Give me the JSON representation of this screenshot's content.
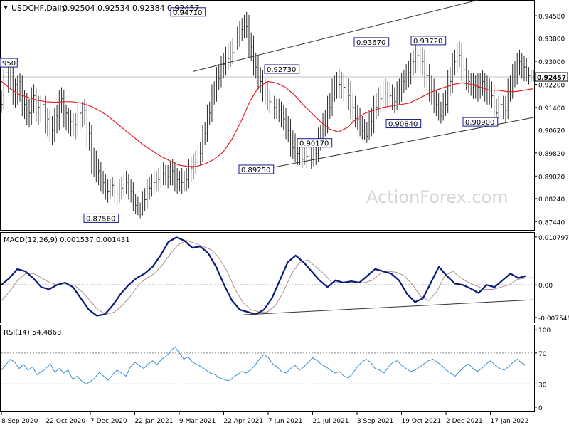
{
  "header": {
    "symbol": "USDCHF,Daily",
    "ohlc": "0.92504 0.92534 0.92384 0.92457"
  },
  "watermark": "ActionForex.com",
  "colors": {
    "price": "#2b2b2b",
    "ema": "#e8202a",
    "macd": "#0b1a7a",
    "signal": "#b09090",
    "rsi": "#3a8fd8",
    "box_border": "#1a1a8c",
    "grid": "#c8c8c8",
    "watermark": "#d4d4d4"
  },
  "chart_data": [
    {
      "panel": "price",
      "type": "line",
      "y_range": [
        0.872,
        0.9505
      ],
      "y_ticks": [
        "0.94580",
        "0.93800",
        "0.93000",
        "0.92200",
        "0.91400",
        "0.90620",
        "0.89820",
        "0.89020",
        "0.88240",
        "0.87440"
      ],
      "y_tick_values": [
        0.9458,
        0.938,
        0.93,
        0.922,
        0.914,
        0.9062,
        0.8982,
        0.8902,
        0.8824,
        0.8744
      ],
      "x_labels": [
        "8 Sep 2020",
        "22 Oct 2020",
        "7 Dec 2020",
        "22 Jan 2021",
        "9 Mar 2021",
        "22 Apr 2021",
        "7 Jun 2021",
        "21 Jul 2021",
        "3 Sep 2021",
        "19 Oct 2021",
        "2 Dec 2021",
        "17 Jan 2022"
      ],
      "last_price": {
        "value": 0.92457,
        "label": "0.92457"
      },
      "price_series": [
        [
          0.915,
          0.92,
          0.912
        ],
        [
          0.926,
          0.928,
          0.918
        ],
        [
          0.929,
          0.93,
          0.92
        ],
        [
          0.922,
          0.924,
          0.914
        ],
        [
          0.923,
          0.926,
          0.916
        ],
        [
          0.915,
          0.92,
          0.91
        ],
        [
          0.912,
          0.917,
          0.907
        ],
        [
          0.918,
          0.922,
          0.912
        ],
        [
          0.914,
          0.918,
          0.908
        ],
        [
          0.915,
          0.919,
          0.909
        ],
        [
          0.91,
          0.914,
          0.904
        ],
        [
          0.906,
          0.911,
          0.901
        ],
        [
          0.911,
          0.915,
          0.905
        ],
        [
          0.917,
          0.921,
          0.912
        ],
        [
          0.912,
          0.915,
          0.906
        ],
        [
          0.909,
          0.913,
          0.904
        ],
        [
          0.908,
          0.912,
          0.903
        ],
        [
          0.912,
          0.916,
          0.906
        ],
        [
          0.913,
          0.917,
          0.908
        ],
        [
          0.905,
          0.909,
          0.899
        ],
        [
          0.895,
          0.9,
          0.89
        ],
        [
          0.892,
          0.896,
          0.887
        ],
        [
          0.888,
          0.892,
          0.884
        ],
        [
          0.885,
          0.889,
          0.881
        ],
        [
          0.887,
          0.89,
          0.883
        ],
        [
          0.884,
          0.888,
          0.88
        ],
        [
          0.886,
          0.89,
          0.882
        ],
        [
          0.888,
          0.892,
          0.884
        ],
        [
          0.885,
          0.889,
          0.881
        ],
        [
          0.88,
          0.884,
          0.877
        ],
        [
          0.877,
          0.881,
          0.8756
        ],
        [
          0.882,
          0.886,
          0.878
        ],
        [
          0.886,
          0.89,
          0.882
        ],
        [
          0.888,
          0.892,
          0.884
        ],
        [
          0.889,
          0.893,
          0.885
        ],
        [
          0.891,
          0.895,
          0.887
        ],
        [
          0.89,
          0.894,
          0.886
        ],
        [
          0.892,
          0.896,
          0.887
        ],
        [
          0.889,
          0.893,
          0.884
        ],
        [
          0.888,
          0.893,
          0.884
        ],
        [
          0.889,
          0.893,
          0.885
        ],
        [
          0.893,
          0.897,
          0.888
        ],
        [
          0.895,
          0.899,
          0.891
        ],
        [
          0.898,
          0.902,
          0.894
        ],
        [
          0.905,
          0.909,
          0.901
        ],
        [
          0.912,
          0.916,
          0.908
        ],
        [
          0.919,
          0.923,
          0.915
        ],
        [
          0.924,
          0.929,
          0.92
        ],
        [
          0.929,
          0.933,
          0.924
        ],
        [
          0.931,
          0.936,
          0.927
        ],
        [
          0.933,
          0.938,
          0.929
        ],
        [
          0.938,
          0.942,
          0.934
        ],
        [
          0.941,
          0.945,
          0.937
        ],
        [
          0.942,
          0.9471,
          0.938
        ],
        [
          0.935,
          0.94,
          0.93
        ],
        [
          0.928,
          0.933,
          0.924
        ],
        [
          0.923,
          0.928,
          0.919
        ],
        [
          0.92,
          0.924,
          0.915
        ],
        [
          0.916,
          0.92,
          0.912
        ],
        [
          0.914,
          0.918,
          0.91
        ],
        [
          0.913,
          0.917,
          0.909
        ],
        [
          0.91,
          0.915,
          0.906
        ],
        [
          0.906,
          0.911,
          0.902
        ],
        [
          0.9,
          0.906,
          0.896
        ],
        [
          0.898,
          0.902,
          0.894
        ],
        [
          0.896,
          0.9,
          0.893
        ],
        [
          0.897,
          0.901,
          0.893
        ],
        [
          0.895,
          0.9,
          0.8925
        ],
        [
          0.898,
          0.903,
          0.894
        ],
        [
          0.903,
          0.908,
          0.899
        ],
        [
          0.908,
          0.913,
          0.904
        ],
        [
          0.914,
          0.919,
          0.91
        ],
        [
          0.92,
          0.925,
          0.916
        ],
        [
          0.922,
          0.9273,
          0.917
        ],
        [
          0.921,
          0.926,
          0.916
        ],
        [
          0.918,
          0.924,
          0.913
        ],
        [
          0.914,
          0.919,
          0.909
        ],
        [
          0.91,
          0.915,
          0.906
        ],
        [
          0.906,
          0.911,
          0.903
        ],
        [
          0.904,
          0.909,
          0.9017
        ],
        [
          0.909,
          0.914,
          0.904
        ],
        [
          0.914,
          0.919,
          0.91
        ],
        [
          0.917,
          0.922,
          0.912
        ],
        [
          0.919,
          0.924,
          0.914
        ],
        [
          0.918,
          0.923,
          0.913
        ],
        [
          0.916,
          0.921,
          0.912
        ],
        [
          0.919,
          0.924,
          0.915
        ],
        [
          0.923,
          0.927,
          0.919
        ],
        [
          0.926,
          0.93,
          0.921
        ],
        [
          0.93,
          0.934,
          0.925
        ],
        [
          0.932,
          0.9367,
          0.927
        ],
        [
          0.93,
          0.935,
          0.925
        ],
        [
          0.925,
          0.93,
          0.92
        ],
        [
          0.92,
          0.925,
          0.915
        ],
        [
          0.915,
          0.92,
          0.911
        ],
        [
          0.911,
          0.916,
          0.9084
        ],
        [
          0.915,
          0.92,
          0.911
        ],
        [
          0.923,
          0.928,
          0.918
        ],
        [
          0.93,
          0.934,
          0.925
        ],
        [
          0.932,
          0.9372,
          0.928
        ],
        [
          0.927,
          0.932,
          0.922
        ],
        [
          0.923,
          0.927,
          0.919
        ],
        [
          0.922,
          0.926,
          0.917
        ],
        [
          0.921,
          0.926,
          0.916
        ],
        [
          0.923,
          0.927,
          0.918
        ],
        [
          0.92,
          0.925,
          0.915
        ],
        [
          0.918,
          0.923,
          0.914
        ],
        [
          0.912,
          0.917,
          0.909
        ],
        [
          0.915,
          0.919,
          0.91
        ],
        [
          0.913,
          0.918,
          0.909
        ],
        [
          0.92,
          0.925,
          0.916
        ],
        [
          0.926,
          0.93,
          0.921
        ],
        [
          0.93,
          0.934,
          0.925
        ],
        [
          0.928,
          0.932,
          0.923
        ],
        [
          0.925,
          0.928,
          0.922
        ],
        [
          0.9246,
          0.927,
          0.923
        ]
      ],
      "ema_series": [
        0.923,
        0.9205,
        0.9185,
        0.9175,
        0.9165,
        0.916,
        0.9158,
        0.916,
        0.916,
        0.9155,
        0.9145,
        0.913,
        0.911,
        0.9085,
        0.906,
        0.9035,
        0.901,
        0.899,
        0.897,
        0.8955,
        0.894,
        0.8935,
        0.8935,
        0.8945,
        0.896,
        0.8985,
        0.903,
        0.909,
        0.916,
        0.921,
        0.923,
        0.9225,
        0.921,
        0.9185,
        0.915,
        0.912,
        0.909,
        0.9065,
        0.9055,
        0.907,
        0.91,
        0.912,
        0.913,
        0.914,
        0.9145,
        0.915,
        0.9155,
        0.917,
        0.9185,
        0.92,
        0.921,
        0.922,
        0.9225,
        0.922,
        0.921,
        0.92,
        0.92,
        0.9195,
        0.9195,
        0.92,
        0.9205
      ],
      "channel_upper": [
        [
          0.361,
          0.9265
        ],
        [
          0.912,
          0.952
        ]
      ],
      "channel_lower": [
        [
          0.491,
          0.8925
        ],
        [
          1.0,
          0.9105
        ]
      ],
      "annotations": [
        {
          "label": "0.94710",
          "value": 0.9471
        },
        {
          "label": "0.87560",
          "value": 0.8756
        },
        {
          "label": "0.89250",
          "value": 0.8925
        },
        {
          "label": "0.92730",
          "value": 0.9273
        },
        {
          "label": "0.90170",
          "value": 0.9017
        },
        {
          "label": "0.93670",
          "value": 0.9367
        },
        {
          "label": "0.90840",
          "value": 0.9084
        },
        {
          "label": "0.93720",
          "value": 0.9372
        },
        {
          "label": "0.90900",
          "value": 0.909
        },
        {
          "label": "950",
          "value": 0.9295
        }
      ]
    },
    {
      "panel": "macd",
      "type": "line",
      "title": "MACD(12,26,9) 0.001537 0.001431",
      "y_range": [
        -0.008,
        0.0112
      ],
      "y_ticks": [
        "0.010797",
        "0.00",
        "-0.007548"
      ],
      "y_tick_values": [
        0.0106,
        0.0,
        -0.0072
      ],
      "zero_line": 0,
      "macd_series": [
        0.0,
        0.0015,
        0.0035,
        0.003,
        0.0015,
        -0.0005,
        -0.001,
        0.0,
        0.0005,
        -0.0005,
        -0.003,
        -0.0055,
        -0.0068,
        -0.0065,
        -0.0045,
        -0.002,
        0.0,
        0.0015,
        0.0025,
        0.004,
        0.0065,
        0.0095,
        0.0105,
        0.0098,
        0.0082,
        0.0085,
        0.007,
        0.004,
        0.0,
        -0.0035,
        -0.0055,
        -0.006,
        -0.0065,
        -0.0055,
        -0.003,
        0.001,
        0.005,
        0.0065,
        0.005,
        0.003,
        0.001,
        -0.0005,
        0.001,
        0.0005,
        0.0008,
        0.0005,
        0.002,
        0.0035,
        0.003,
        0.0025,
        0.001,
        -0.002,
        -0.0038,
        -0.003,
        0.0005,
        0.004,
        0.002,
        0.0003,
        0.0,
        -0.0008,
        -0.0018,
        0.0,
        -0.0005,
        0.001,
        0.0025,
        0.0015,
        0.002
      ],
      "signal_series": [
        -0.0035,
        -0.0015,
        0.001,
        0.0025,
        0.0025,
        0.0015,
        0.0005,
        0.0,
        0.0,
        0.0,
        -0.0015,
        -0.0035,
        -0.0055,
        -0.0065,
        -0.006,
        -0.0045,
        -0.0025,
        0.0,
        0.0015,
        0.0025,
        0.0045,
        0.007,
        0.009,
        0.0098,
        0.0092,
        0.0085,
        0.0078,
        0.006,
        0.003,
        -0.001,
        -0.004,
        -0.0055,
        -0.006,
        -0.006,
        -0.0045,
        -0.0015,
        0.0025,
        0.005,
        0.0055,
        0.004,
        0.0025,
        0.0005,
        0.0005,
        0.0005,
        0.0005,
        0.0005,
        0.001,
        0.0025,
        0.003,
        0.0028,
        0.002,
        0.0,
        -0.0025,
        -0.0035,
        -0.0015,
        0.002,
        0.003,
        0.0015,
        0.0005,
        -0.0003,
        -0.001,
        -0.001,
        -0.0005,
        0.0,
        0.0012,
        0.0015,
        0.0016
      ],
      "trendline": [
        [
          0.455,
          -0.0066
        ],
        [
          1.0,
          -0.0033
        ]
      ]
    },
    {
      "panel": "rsi",
      "type": "line",
      "title": "RSI(14) 54.4863",
      "y_range": [
        0,
        100
      ],
      "y_ticks": [
        "100",
        "70",
        "30",
        "0"
      ],
      "y_tick_values": [
        100,
        70,
        30,
        0
      ],
      "levels": [
        70,
        30
      ],
      "rsi_series": [
        48,
        55,
        62,
        58,
        50,
        55,
        48,
        52,
        42,
        46,
        50,
        56,
        45,
        50,
        44,
        48,
        36,
        40,
        34,
        30,
        33,
        38,
        45,
        40,
        35,
        42,
        48,
        44,
        40,
        52,
        58,
        54,
        50,
        56,
        60,
        55,
        62,
        66,
        72,
        78,
        70,
        62,
        65,
        58,
        55,
        52,
        48,
        44,
        42,
        38,
        36,
        34,
        38,
        42,
        46,
        44,
        48,
        54,
        62,
        68,
        64,
        56,
        52,
        46,
        44,
        50,
        54,
        48,
        52,
        58,
        64,
        60,
        55,
        52,
        48,
        44,
        46,
        40,
        38,
        44,
        52,
        58,
        62,
        58,
        50,
        48,
        44,
        52,
        58,
        60,
        54,
        50,
        46,
        48,
        52,
        56,
        60,
        62,
        58,
        54,
        48,
        44,
        40,
        46,
        52,
        56,
        50,
        46,
        50,
        56,
        60,
        54,
        50,
        48,
        52,
        58,
        62,
        57,
        54
      ]
    }
  ]
}
